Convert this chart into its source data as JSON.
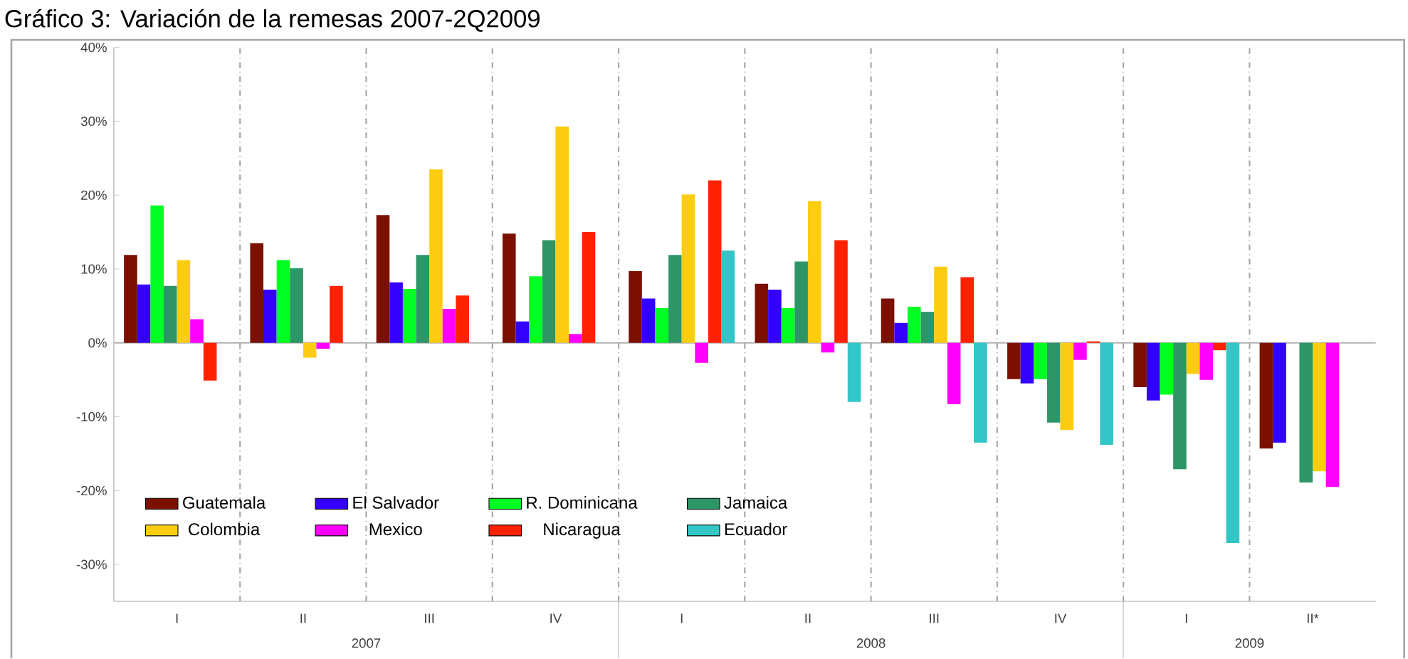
{
  "chart_data": {
    "type": "bar",
    "title": "Gráfico 3: Variación de la remesas 2007-2Q2009",
    "categories": [
      "I",
      "II",
      "III",
      "IV",
      "I",
      "II",
      "III",
      "IV",
      "I",
      "II*"
    ],
    "series": [
      {
        "name": "Guatemala",
        "color": "#7b1000",
        "values": [
          11.9,
          13.5,
          17.3,
          14.8,
          9.7,
          8.0,
          6.0,
          -4.9,
          -6.0,
          -14.3
        ]
      },
      {
        "name": "El Salvador",
        "color": "#3300ff",
        "values": [
          7.9,
          7.2,
          8.2,
          2.9,
          6.0,
          7.2,
          2.7,
          -5.5,
          -7.8,
          -13.5
        ]
      },
      {
        "name": "R. Dominicana",
        "color": "#00ff22",
        "values": [
          18.6,
          11.2,
          7.3,
          9.0,
          4.7,
          4.7,
          4.9,
          -4.9,
          -7.0,
          null
        ]
      },
      {
        "name": "Jamaica",
        "color": "#2e9566",
        "values": [
          7.7,
          10.1,
          11.9,
          13.9,
          11.9,
          11.0,
          4.2,
          -10.8,
          -17.1,
          -18.9
        ]
      },
      {
        "name": "Colombia",
        "color": "#fccc11",
        "values": [
          11.2,
          -2.0,
          23.5,
          29.3,
          20.1,
          19.2,
          10.3,
          -11.8,
          -4.2,
          -17.4
        ]
      },
      {
        "name": "Mexico",
        "color": "#ff00ff",
        "values": [
          3.2,
          -0.8,
          4.6,
          1.2,
          -2.7,
          -1.3,
          -8.3,
          -2.3,
          -5.0,
          -19.5
        ]
      },
      {
        "name": "Nicaragua",
        "color": "#ff2200",
        "values": [
          -5.1,
          7.7,
          6.4,
          15.0,
          22.0,
          13.9,
          8.9,
          0.2,
          -1.0,
          null
        ]
      },
      {
        "name": "Ecuador",
        "color": "#33c6c6",
        "values": [
          null,
          null,
          null,
          null,
          12.5,
          -8.0,
          -13.5,
          -13.8,
          -27.1,
          null
        ]
      }
    ],
    "ylim": [
      -35,
      40
    ],
    "yticks": [
      {
        "value": -30,
        "label": "-30%"
      },
      {
        "value": -20,
        "label": "-20%"
      },
      {
        "value": -10,
        "label": "-10%"
      },
      {
        "value": 0,
        "label": "0%"
      },
      {
        "value": 10,
        "label": "10%"
      },
      {
        "value": 20,
        "label": "20%"
      },
      {
        "value": 30,
        "label": "30%"
      },
      {
        "value": 40,
        "label": "40%"
      }
    ],
    "annotations": [
      "2007",
      "2008",
      "2009"
    ],
    "grid": "x",
    "legend": "bottom left"
  }
}
